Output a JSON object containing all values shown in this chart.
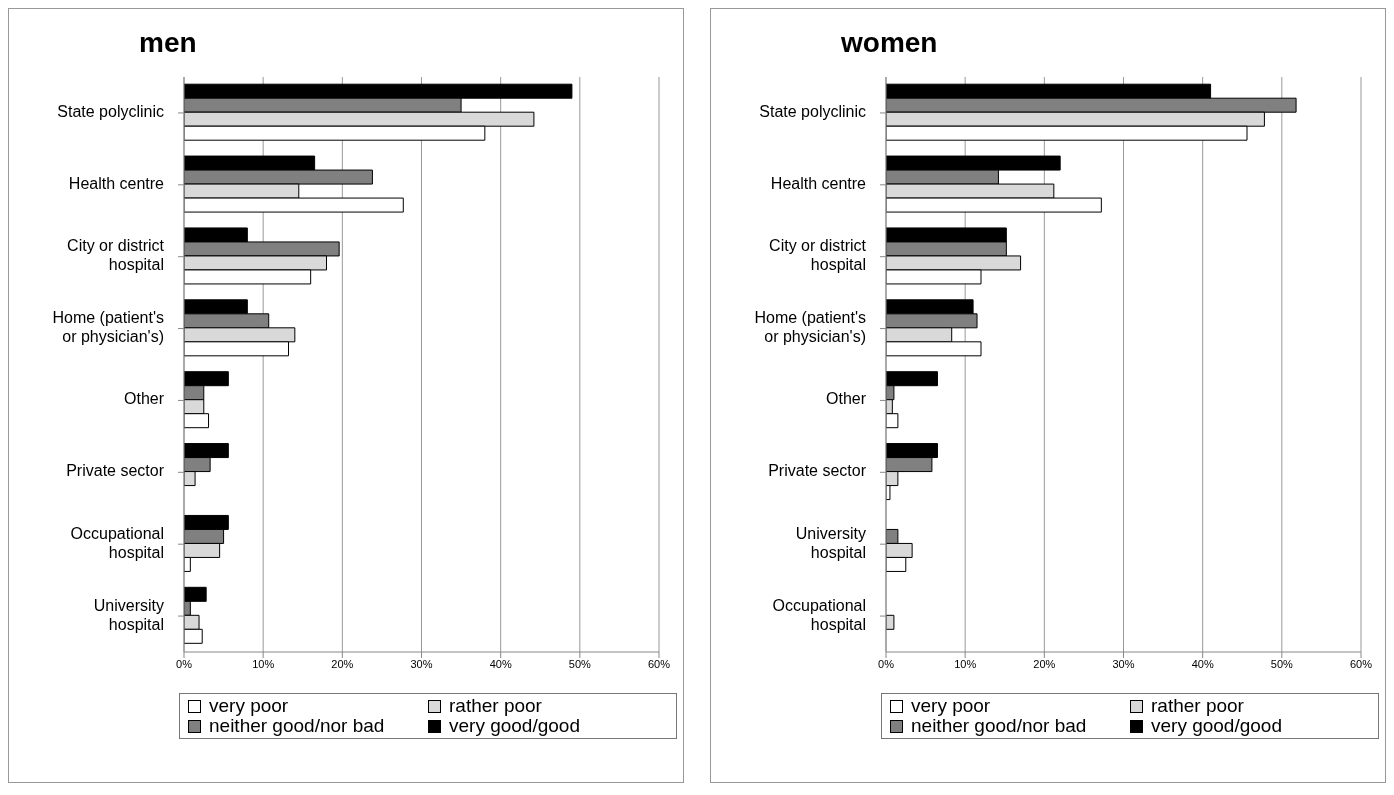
{
  "chart_data": [
    {
      "type": "bar",
      "orientation": "horizontal",
      "title": "men",
      "categories": [
        "State polyclinic",
        "Health centre",
        "City or district hospital",
        "Home (patient's or physician's)",
        "Other",
        "Private sector",
        "Occupational hospital",
        "University hospital"
      ],
      "series": [
        {
          "name": "very poor",
          "color": "#ffffff",
          "values": [
            38,
            27.7,
            16,
            13.2,
            3.1,
            0,
            0.8,
            2.3
          ]
        },
        {
          "name": "rather poor",
          "color": "#d9d9d9",
          "values": [
            44.2,
            14.5,
            18,
            14,
            2.5,
            1.4,
            4.5,
            1.9
          ]
        },
        {
          "name": "neither good/nor bad",
          "color": "#808080",
          "values": [
            35,
            23.8,
            19.6,
            10.7,
            2.5,
            3.3,
            5,
            0.8
          ]
        },
        {
          "name": "very good/good",
          "color": "#000000",
          "values": [
            49,
            16.5,
            8,
            8,
            5.6,
            5.6,
            5.6,
            2.8
          ]
        }
      ],
      "xlim": [
        0,
        60
      ],
      "xticks": [
        {
          "value": 0,
          "label": "0%"
        },
        {
          "value": 10,
          "label": "10%"
        },
        {
          "value": 20,
          "label": "20%"
        },
        {
          "value": 30,
          "label": "30%"
        },
        {
          "value": 40,
          "label": "40%"
        },
        {
          "value": 50,
          "label": "50%"
        },
        {
          "value": 60,
          "label": "60%"
        }
      ],
      "grid": "x",
      "legend": "bottom"
    },
    {
      "type": "bar",
      "orientation": "horizontal",
      "title": "women",
      "categories": [
        "State polyclinic",
        "Health centre",
        "City or district hospital",
        "Home (patient's or physician's)",
        "Other",
        "Private sector",
        "University hospital",
        "Occupational hospital"
      ],
      "series": [
        {
          "name": "very poor",
          "color": "#ffffff",
          "values": [
            45.6,
            27.2,
            12,
            12,
            1.5,
            0.5,
            2.5,
            0
          ]
        },
        {
          "name": "rather poor",
          "color": "#d9d9d9",
          "values": [
            47.8,
            21.2,
            17,
            8.3,
            0.8,
            1.5,
            3.3,
            1
          ]
        },
        {
          "name": "neither good/nor bad",
          "color": "#808080",
          "values": [
            51.8,
            14.2,
            15.2,
            11.5,
            1,
            5.8,
            1.5,
            0
          ]
        },
        {
          "name": "very good/good",
          "color": "#000000",
          "values": [
            41,
            22,
            15.2,
            11,
            6.5,
            6.5,
            0,
            0
          ]
        }
      ],
      "xlim": [
        0,
        60
      ],
      "xticks": [
        {
          "value": 0,
          "label": "0%"
        },
        {
          "value": 10,
          "label": "10%"
        },
        {
          "value": 20,
          "label": "20%"
        },
        {
          "value": 30,
          "label": "30%"
        },
        {
          "value": 40,
          "label": "40%"
        },
        {
          "value": 50,
          "label": "50%"
        },
        {
          "value": 60,
          "label": "60%"
        }
      ],
      "grid": "x",
      "legend": "bottom"
    }
  ]
}
